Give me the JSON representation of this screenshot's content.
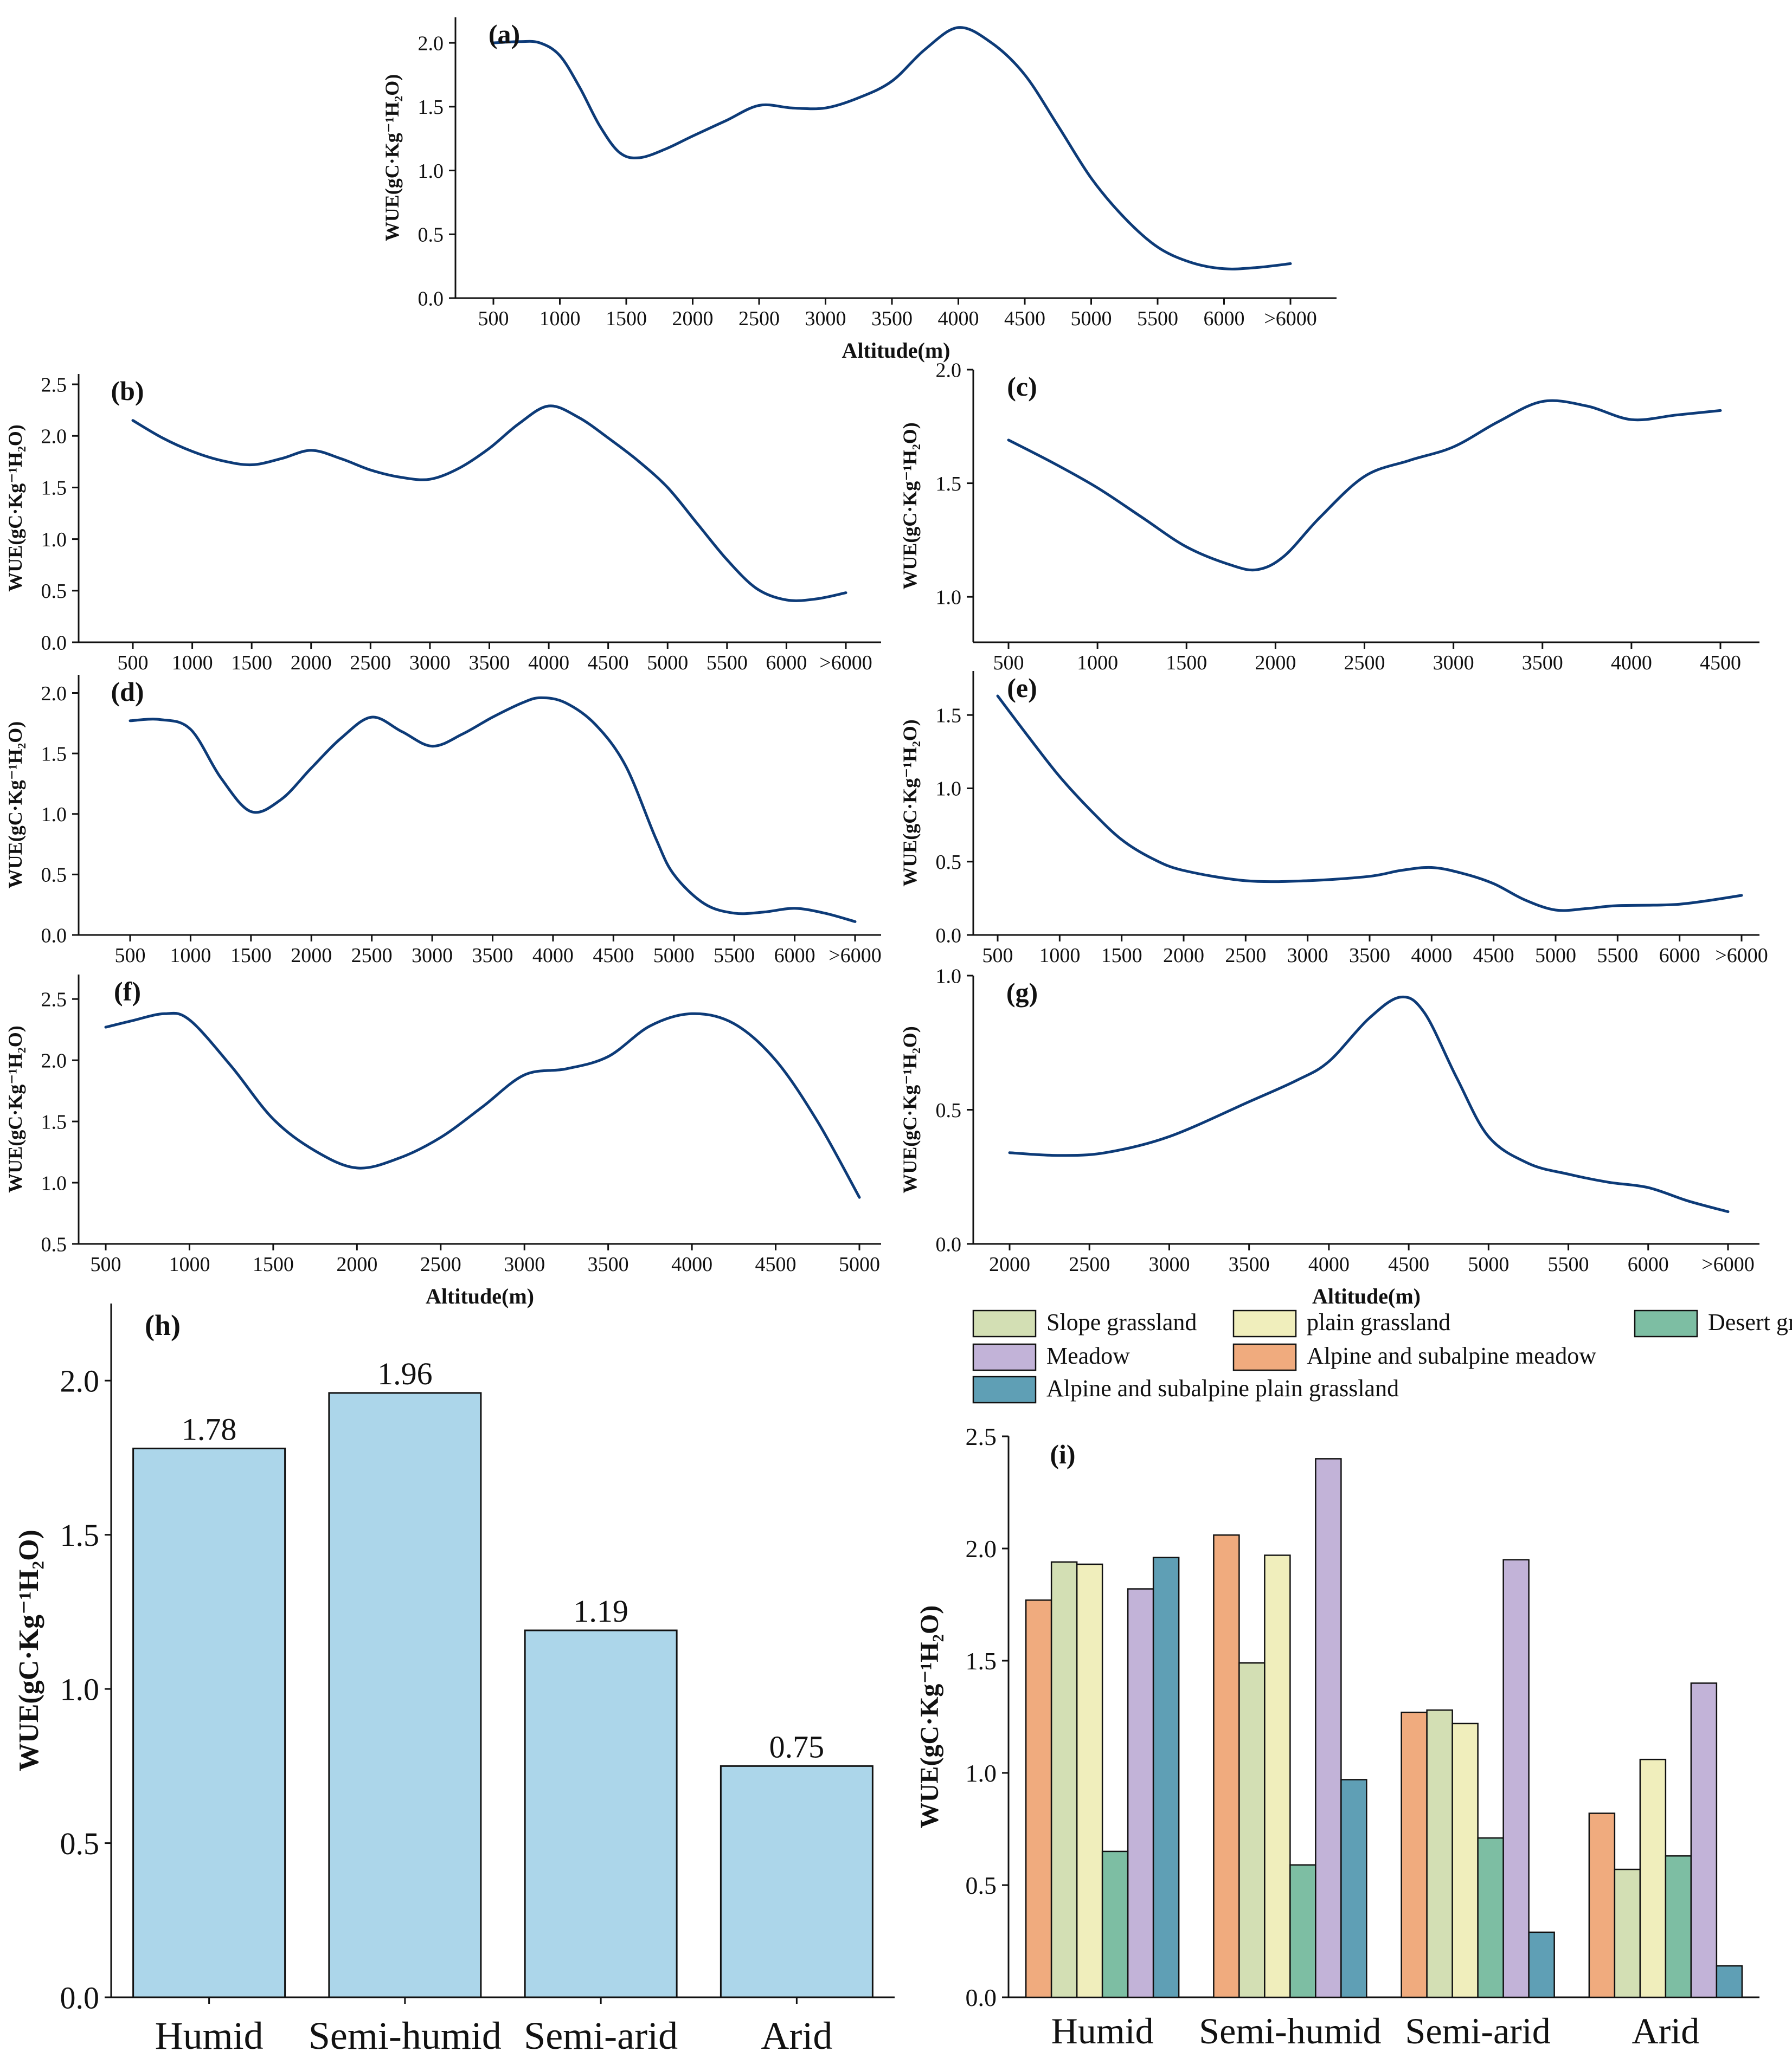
{
  "chart_data": [
    {
      "id": "a",
      "panel_label": "(a)",
      "type": "line",
      "ylabel": "WUE(gC·Kg⁻¹H₂O)",
      "xlabel": "Altitude(m)",
      "categories": [
        "500",
        "1000",
        "1500",
        "2000",
        "2500",
        "3000",
        "3500",
        "4000",
        "4500",
        "5000",
        "5500",
        "6000",
        ">6000"
      ],
      "ylim": [
        0.0,
        2.2
      ],
      "yticks": [
        "0.0",
        "0.5",
        "1.0",
        "1.5",
        "2.0"
      ],
      "series": [
        {
          "name": "WUE",
          "x": [
            500,
            700,
            850,
            1000,
            1150,
            1300,
            1450,
            1600,
            1800,
            2000,
            2250,
            2500,
            2750,
            3000,
            3250,
            3500,
            3750,
            4000,
            4250,
            4500,
            4750,
            5000,
            5250,
            5500,
            5750,
            6000,
            6250,
            6500
          ],
          "y": [
            2.0,
            2.01,
            2.0,
            1.9,
            1.65,
            1.35,
            1.14,
            1.1,
            1.17,
            1.27,
            1.39,
            1.51,
            1.49,
            1.49,
            1.57,
            1.7,
            1.95,
            2.12,
            2.0,
            1.75,
            1.35,
            0.94,
            0.63,
            0.4,
            0.28,
            0.23,
            0.24,
            0.27
          ]
        }
      ]
    },
    {
      "id": "b",
      "panel_label": "(b)",
      "type": "line",
      "ylabel": "WUE(gC·Kg⁻¹H₂O)",
      "xlabel": "",
      "categories": [
        "500",
        "1000",
        "1500",
        "2000",
        "2500",
        "3000",
        "3500",
        "4000",
        "4500",
        "5000",
        "5500",
        "6000",
        ">6000"
      ],
      "ylim": [
        0.0,
        2.6
      ],
      "yticks": [
        "0.0",
        "0.5",
        "1.0",
        "1.5",
        "2.0",
        "2.5"
      ],
      "series": [
        {
          "name": "WUE",
          "x": [
            500,
            750,
            1000,
            1250,
            1500,
            1750,
            2000,
            2250,
            2500,
            2750,
            3000,
            3250,
            3500,
            3750,
            4000,
            4250,
            4500,
            4750,
            5000,
            5250,
            5500,
            5750,
            6000,
            6250,
            6500
          ],
          "y": [
            2.15,
            1.98,
            1.85,
            1.76,
            1.72,
            1.78,
            1.86,
            1.78,
            1.67,
            1.6,
            1.58,
            1.69,
            1.88,
            2.12,
            2.29,
            2.18,
            1.98,
            1.76,
            1.5,
            1.15,
            0.8,
            0.52,
            0.41,
            0.42,
            0.48
          ]
        }
      ]
    },
    {
      "id": "c",
      "panel_label": "(c)",
      "type": "line",
      "ylabel": "WUE(gC·Kg⁻¹H₂O)",
      "xlabel": "",
      "categories": [
        "500",
        "1000",
        "1500",
        "2000",
        "2500",
        "3000",
        "3500",
        "4000",
        "4500"
      ],
      "ylim": [
        0.8,
        2.0
      ],
      "yticks": [
        "1.0",
        "1.5",
        "2.0"
      ],
      "series": [
        {
          "name": "WUE",
          "x": [
            500,
            750,
            1000,
            1250,
            1500,
            1750,
            1900,
            2050,
            2250,
            2500,
            2750,
            3000,
            3250,
            3500,
            3750,
            4000,
            4250,
            4500
          ],
          "y": [
            1.69,
            1.59,
            1.48,
            1.35,
            1.22,
            1.14,
            1.12,
            1.18,
            1.35,
            1.53,
            1.6,
            1.66,
            1.77,
            1.86,
            1.84,
            1.78,
            1.8,
            1.82
          ]
        }
      ]
    },
    {
      "id": "d",
      "panel_label": "(d)",
      "type": "line",
      "ylabel": "WUE(gC·Kg⁻¹H₂O)",
      "xlabel": "",
      "categories": [
        "500",
        "1000",
        "1500",
        "2000",
        "2500",
        "3000",
        "3500",
        "4000",
        "4500",
        "5000",
        "5500",
        "6000",
        ">6000"
      ],
      "ylim": [
        0.0,
        2.15
      ],
      "yticks": [
        "0.0",
        "0.5",
        "1.0",
        "1.5",
        "2.0"
      ],
      "series": [
        {
          "name": "WUE",
          "x": [
            500,
            750,
            1000,
            1250,
            1500,
            1750,
            2000,
            2250,
            2500,
            2750,
            3000,
            3250,
            3500,
            3750,
            3900,
            4100,
            4350,
            4600,
            4850,
            5000,
            5250,
            5500,
            5750,
            6000,
            6250,
            6500
          ],
          "y": [
            1.77,
            1.78,
            1.7,
            1.3,
            1.02,
            1.12,
            1.38,
            1.63,
            1.8,
            1.68,
            1.56,
            1.66,
            1.8,
            1.92,
            1.96,
            1.92,
            1.74,
            1.4,
            0.8,
            0.5,
            0.26,
            0.18,
            0.19,
            0.22,
            0.18,
            0.11
          ]
        }
      ]
    },
    {
      "id": "e",
      "panel_label": "(e)",
      "type": "line",
      "ylabel": "WUE(gC·Kg⁻¹H₂O)",
      "xlabel": "",
      "categories": [
        "500",
        "1000",
        "1500",
        "2000",
        "2500",
        "3000",
        "3500",
        "4000",
        "4500",
        "5000",
        "5500",
        "6000",
        ">6000"
      ],
      "ylim": [
        0.0,
        1.8
      ],
      "yticks": [
        "0.0",
        "0.5",
        "1.0",
        "1.5"
      ],
      "series": [
        {
          "name": "WUE",
          "x": [
            500,
            750,
            1000,
            1250,
            1500,
            1750,
            2000,
            2500,
            3000,
            3500,
            3750,
            4000,
            4250,
            4500,
            4750,
            5000,
            5250,
            5500,
            6000,
            6500
          ],
          "y": [
            1.63,
            1.35,
            1.08,
            0.85,
            0.65,
            0.52,
            0.44,
            0.37,
            0.37,
            0.4,
            0.44,
            0.46,
            0.42,
            0.35,
            0.24,
            0.17,
            0.18,
            0.2,
            0.21,
            0.27
          ]
        }
      ]
    },
    {
      "id": "f",
      "panel_label": "(f)",
      "type": "line",
      "ylabel": "WUE(gC·Kg⁻¹H₂O)",
      "xlabel": "Altitude(m)",
      "categories": [
        "500",
        "1000",
        "1500",
        "2000",
        "2500",
        "3000",
        "3500",
        "4000",
        "4500",
        "5000"
      ],
      "ylim": [
        0.5,
        2.7
      ],
      "yticks": [
        "0.5",
        "1.0",
        "1.5",
        "2.0",
        "2.5"
      ],
      "series": [
        {
          "name": "WUE",
          "x": [
            500,
            650,
            850,
            1000,
            1250,
            1500,
            1750,
            2000,
            2250,
            2500,
            2750,
            3000,
            3250,
            3500,
            3750,
            4000,
            4250,
            4500,
            4750,
            5000
          ],
          "y": [
            2.27,
            2.32,
            2.38,
            2.33,
            1.95,
            1.52,
            1.26,
            1.12,
            1.2,
            1.37,
            1.62,
            1.88,
            1.93,
            2.03,
            2.28,
            2.38,
            2.3,
            2.0,
            1.5,
            0.88
          ]
        }
      ]
    },
    {
      "id": "g",
      "panel_label": "(g)",
      "type": "line",
      "ylabel": "WUE(gC·Kg⁻¹H₂O)",
      "xlabel": "Altitude(m)",
      "categories": [
        "2000",
        "2500",
        "3000",
        "3500",
        "4000",
        "4500",
        "5000",
        "5500",
        "6000",
        ">6000"
      ],
      "ylim": [
        0.0,
        1.0
      ],
      "yticks": [
        "0.0",
        "0.5",
        "1.0"
      ],
      "series": [
        {
          "name": "WUE",
          "x": [
            2000,
            2300,
            2600,
            3000,
            3500,
            3800,
            4000,
            4250,
            4450,
            4600,
            4800,
            5000,
            5250,
            5500,
            5750,
            6000,
            6250,
            6500
          ],
          "y": [
            0.34,
            0.33,
            0.34,
            0.4,
            0.53,
            0.61,
            0.68,
            0.84,
            0.92,
            0.86,
            0.62,
            0.4,
            0.3,
            0.26,
            0.23,
            0.21,
            0.16,
            0.12
          ]
        }
      ]
    },
    {
      "id": "h",
      "panel_label": "(h)",
      "type": "bar",
      "ylabel": "WUE(gC·Kg⁻¹H₂O)",
      "xlabel": "",
      "categories": [
        "Humid",
        "Semi-humid",
        "Semi-arid",
        "Arid"
      ],
      "values": [
        1.78,
        1.96,
        1.19,
        0.75
      ],
      "value_labels": [
        "1.78",
        "1.96",
        "1.19",
        "0.75"
      ],
      "ylim": [
        0.0,
        2.25
      ],
      "yticks": [
        "0.0",
        "0.5",
        "1.0",
        "1.5",
        "2.0"
      ],
      "color": "#acd6ea"
    },
    {
      "id": "i",
      "panel_label": "(i)",
      "type": "bar",
      "ylabel": "WUE(gC·Kg⁻¹H₂O)",
      "xlabel": "",
      "categories": [
        "Humid",
        "Semi-humid",
        "Semi-arid",
        "Arid"
      ],
      "ylim": [
        0.0,
        2.5
      ],
      "yticks": [
        "0.0",
        "0.5",
        "1.0",
        "1.5",
        "2.0",
        "2.5"
      ],
      "legend": [
        [
          "Slope grassland",
          "plain grassland",
          "Desert grassland"
        ],
        [
          "Meadow",
          "Alpine and subalpine meadow"
        ],
        [
          "Alpine and subalpine plain grassland"
        ]
      ],
      "series": [
        {
          "name": "Alpine and subalpine meadow",
          "color": "#f0ab7e",
          "values": [
            1.77,
            2.06,
            1.27,
            0.82
          ]
        },
        {
          "name": "Slope grassland",
          "color": "#d3dfb4",
          "values": [
            1.94,
            1.49,
            1.28,
            0.57
          ]
        },
        {
          "name": "plain grassland",
          "color": "#f0eebc",
          "values": [
            1.93,
            1.97,
            1.22,
            1.06
          ]
        },
        {
          "name": "Desert grassland",
          "color": "#7dbea3",
          "values": [
            0.65,
            0.59,
            0.71,
            0.63
          ]
        },
        {
          "name": "Meadow",
          "color": "#c2b3d8",
          "values": [
            1.82,
            2.4,
            1.95,
            1.4
          ]
        },
        {
          "name": "Alpine and subalpine plain grassland",
          "color": "#5f9fb5",
          "values": [
            1.96,
            0.97,
            0.29,
            0.14
          ]
        }
      ]
    }
  ]
}
